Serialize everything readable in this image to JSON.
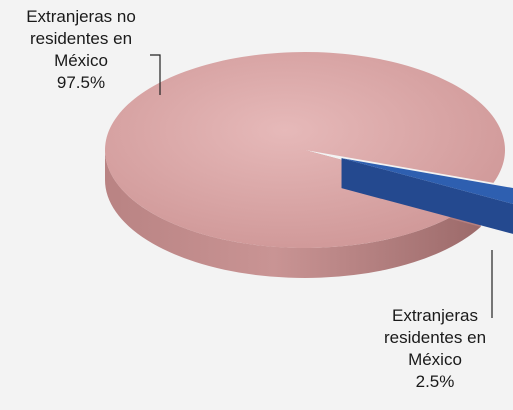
{
  "chart_data": {
    "type": "pie",
    "three_d": true,
    "title": "",
    "slices": [
      {
        "label_lines": [
          "Extranjeras no",
          "residentes en",
          "México"
        ],
        "value": 97.5,
        "percent_label": "97.5%",
        "color": "#d9a4a4"
      },
      {
        "label_lines": [
          "Extranjeras",
          "residentes en",
          "México"
        ],
        "value": 2.5,
        "percent_label": "2.5%",
        "color": "#2e5fb0"
      }
    ],
    "slice_order": "minor slice pulled out to the right",
    "legend": "none"
  },
  "colors": {
    "background": "#f3f3f3",
    "major_top": "#d9a4a4",
    "major_side": "#b57f7f",
    "minor_top": "#2e5fb0",
    "minor_side": "#1d3f7e"
  }
}
